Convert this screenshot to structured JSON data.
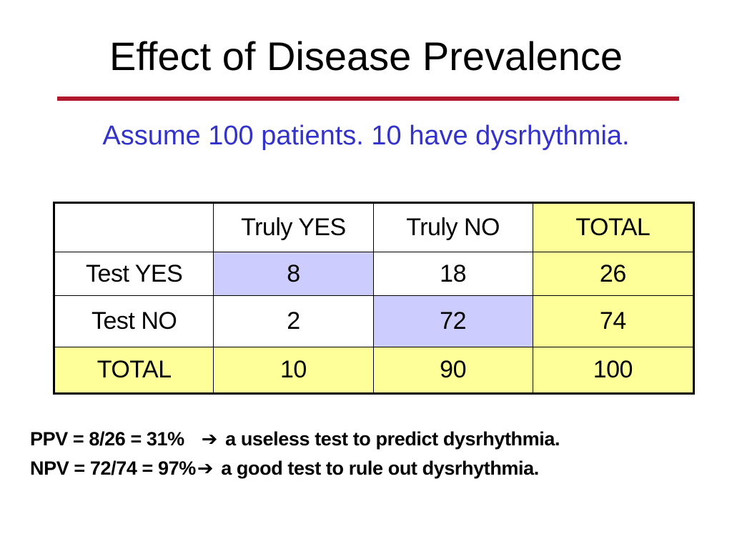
{
  "colors": {
    "title": "#000000",
    "rule": "#b0182c",
    "subtitle": "#3333cc",
    "highlight_yellow": "#ffff99",
    "highlight_blue": "#ccccff"
  },
  "slide": {
    "title": "Effect of Disease Prevalence",
    "subtitle": "Assume 100 patients. 10 have dysrhythmia."
  },
  "table": {
    "headers": [
      "",
      "Truly YES",
      "Truly NO",
      "TOTAL"
    ],
    "rows": [
      {
        "label": "Test YES",
        "cells": [
          "8",
          "18",
          "26"
        ]
      },
      {
        "label": "Test NO",
        "cells": [
          "2",
          "72",
          "74"
        ]
      },
      {
        "label": "TOTAL",
        "cells": [
          "10",
          "90",
          "100"
        ]
      }
    ]
  },
  "notes": [
    {
      "lead": "PPV = 8/26 = 31%",
      "arrow": "➔",
      "text": "a useless test to predict dysrhythmia."
    },
    {
      "lead": "NPV = 72/74 = 97%",
      "arrow": "➔",
      "text": "a good test to rule out dysrhythmia."
    }
  ]
}
